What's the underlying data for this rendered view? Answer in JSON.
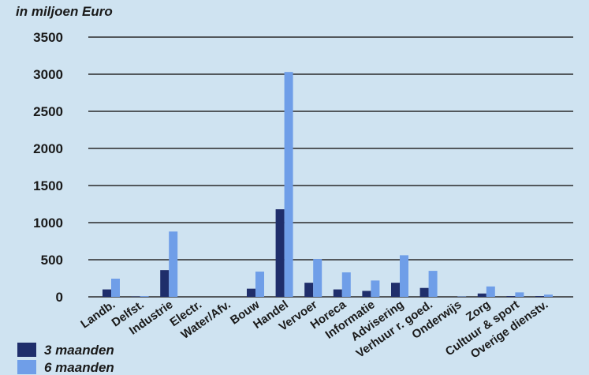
{
  "chart_data": {
    "type": "bar",
    "title": "",
    "ylabel": "in miljoen Euro",
    "xlabel": "",
    "ylim": [
      0,
      3500
    ],
    "yticks": [
      0,
      500,
      1000,
      1500,
      2000,
      2500,
      3000,
      3500
    ],
    "grid": true,
    "legend_position": "bottom-left",
    "categories": [
      "Landb.",
      "Delfst.",
      "Industrie",
      "Electr.",
      "Water/Afv.",
      "Bouw",
      "Handel",
      "Vervoer",
      "Horeca",
      "Informatie",
      "Advisering",
      "Verhuur r. goed.",
      "Onderwijs",
      "Zorg",
      "Cultuur & sport",
      "Overige dienstv."
    ],
    "series": [
      {
        "name": "3 maanden",
        "color": "#1f2e6b",
        "values": [
          100,
          5,
          360,
          0,
          0,
          110,
          1180,
          190,
          100,
          80,
          190,
          120,
          0,
          45,
          10,
          10
        ]
      },
      {
        "name": "6 maanden",
        "color": "#6f9ee8",
        "values": [
          245,
          10,
          880,
          0,
          0,
          340,
          3030,
          510,
          330,
          220,
          560,
          350,
          5,
          140,
          60,
          30
        ]
      }
    ]
  }
}
